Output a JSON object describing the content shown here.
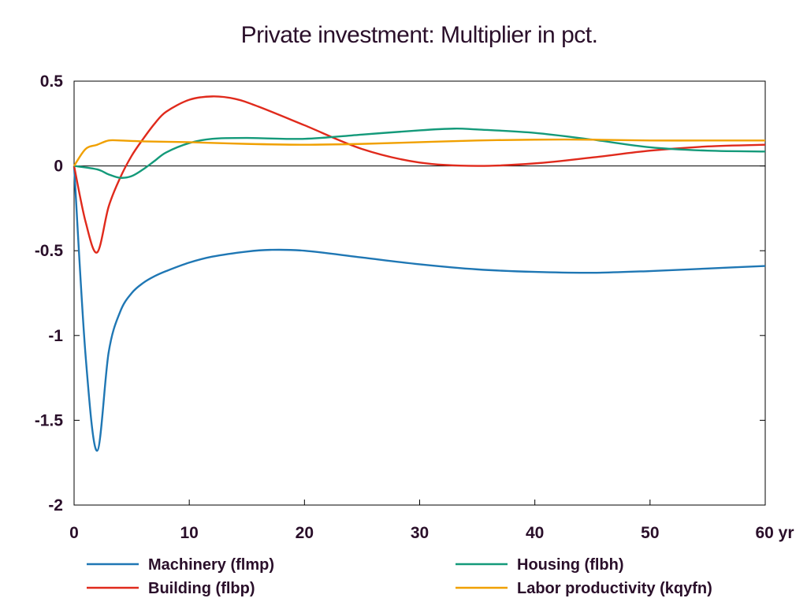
{
  "chart_data": {
    "type": "line",
    "title": "Private investment: Multiplier in pct.",
    "xlabel": "",
    "ylabel": "",
    "x_unit_label": "yr",
    "xlim": [
      0,
      60
    ],
    "ylim": [
      -2,
      0.5
    ],
    "x_ticks": [
      0,
      10,
      20,
      30,
      40,
      50,
      60
    ],
    "x_tick_labels": [
      "0",
      "10",
      "20",
      "30",
      "40",
      "50",
      "60 yr"
    ],
    "y_ticks": [
      0.5,
      0,
      -0.5,
      -1,
      -1.5,
      -2
    ],
    "y_tick_labels": [
      "0.5",
      "0",
      "-0.5",
      "-1",
      "-1.5",
      "-2"
    ],
    "grid": false,
    "legend_position": "bottom",
    "series": [
      {
        "name": "Machinery (flmp)",
        "color": "#1f77b4",
        "points": [
          [
            0,
            0
          ],
          [
            1,
            -1.12
          ],
          [
            2,
            -1.68
          ],
          [
            3,
            -1.1
          ],
          [
            4,
            -0.86
          ],
          [
            5,
            -0.75
          ],
          [
            6,
            -0.69
          ],
          [
            7,
            -0.65
          ],
          [
            8,
            -0.62
          ],
          [
            10,
            -0.57
          ],
          [
            12,
            -0.535
          ],
          [
            15,
            -0.505
          ],
          [
            17,
            -0.495
          ],
          [
            20,
            -0.5
          ],
          [
            25,
            -0.54
          ],
          [
            30,
            -0.58
          ],
          [
            35,
            -0.61
          ],
          [
            40,
            -0.625
          ],
          [
            45,
            -0.63
          ],
          [
            50,
            -0.62
          ],
          [
            55,
            -0.605
          ],
          [
            60,
            -0.59
          ]
        ]
      },
      {
        "name": "Building (flbp)",
        "color": "#e02a1c",
        "points": [
          [
            0,
            0
          ],
          [
            1,
            -0.33
          ],
          [
            2,
            -0.51
          ],
          [
            3,
            -0.24
          ],
          [
            4,
            -0.07
          ],
          [
            5,
            0.06
          ],
          [
            6,
            0.16
          ],
          [
            7,
            0.25
          ],
          [
            8,
            0.32
          ],
          [
            10,
            0.39
          ],
          [
            12,
            0.41
          ],
          [
            14,
            0.395
          ],
          [
            16,
            0.35
          ],
          [
            20,
            0.24
          ],
          [
            25,
            0.1
          ],
          [
            30,
            0.02
          ],
          [
            35,
            0.0
          ],
          [
            40,
            0.015
          ],
          [
            45,
            0.05
          ],
          [
            50,
            0.09
          ],
          [
            55,
            0.115
          ],
          [
            60,
            0.125
          ]
        ]
      },
      {
        "name": "Housing (flbh)",
        "color": "#149a7a",
        "points": [
          [
            0,
            0
          ],
          [
            2,
            -0.02
          ],
          [
            3,
            -0.05
          ],
          [
            4,
            -0.07
          ],
          [
            5,
            -0.06
          ],
          [
            6,
            -0.02
          ],
          [
            7,
            0.03
          ],
          [
            8,
            0.08
          ],
          [
            10,
            0.135
          ],
          [
            12,
            0.16
          ],
          [
            15,
            0.165
          ],
          [
            20,
            0.16
          ],
          [
            25,
            0.185
          ],
          [
            30,
            0.21
          ],
          [
            33,
            0.22
          ],
          [
            35,
            0.215
          ],
          [
            40,
            0.195
          ],
          [
            45,
            0.155
          ],
          [
            50,
            0.11
          ],
          [
            55,
            0.09
          ],
          [
            60,
            0.085
          ]
        ]
      },
      {
        "name": "Labor productivity (kqyfn)",
        "color": "#f0a000",
        "points": [
          [
            0,
            0
          ],
          [
            1,
            0.1
          ],
          [
            2,
            0.125
          ],
          [
            3,
            0.15
          ],
          [
            4,
            0.15
          ],
          [
            6,
            0.145
          ],
          [
            10,
            0.14
          ],
          [
            15,
            0.13
          ],
          [
            20,
            0.125
          ],
          [
            25,
            0.13
          ],
          [
            30,
            0.14
          ],
          [
            35,
            0.15
          ],
          [
            40,
            0.155
          ],
          [
            45,
            0.155
          ],
          [
            50,
            0.15
          ],
          [
            55,
            0.15
          ],
          [
            60,
            0.15
          ]
        ]
      }
    ]
  }
}
